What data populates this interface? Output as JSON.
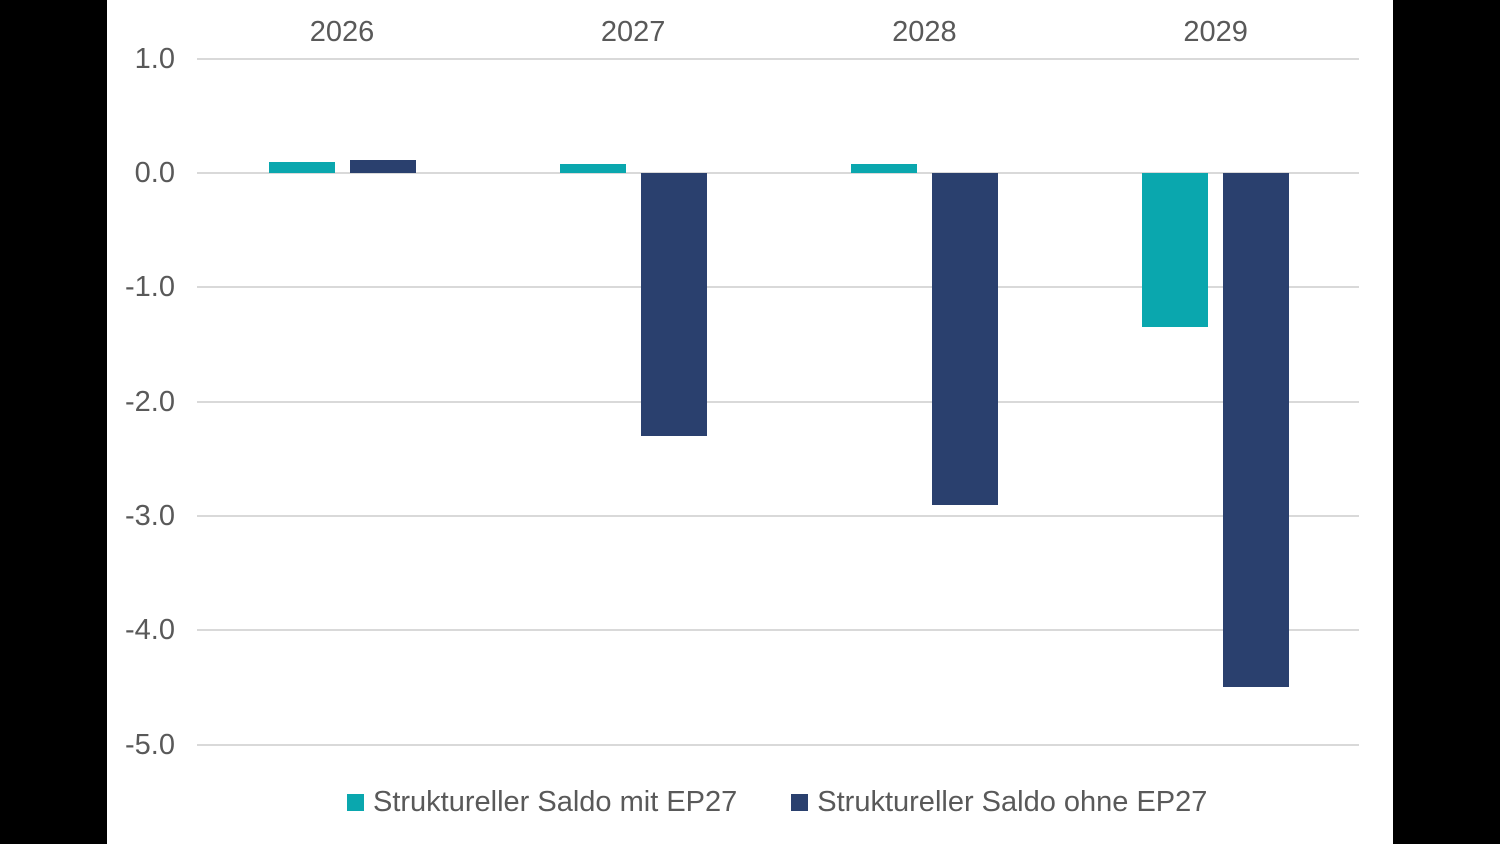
{
  "frame": {
    "background_color": "#000000",
    "canvas_color": "#ffffff",
    "gridline_color": "#D9D9D9",
    "text_color": "#595959"
  },
  "chart_data": {
    "type": "bar",
    "title": "",
    "xlabel": "",
    "ylabel": "",
    "categories": [
      "2026",
      "2027",
      "2028",
      "2029"
    ],
    "series": [
      {
        "name": "Struktureller Saldo mit EP27",
        "color": "#0AA7AE",
        "values": [
          0.1,
          0.08,
          0.08,
          -1.35
        ]
      },
      {
        "name": "Struktureller Saldo ohne EP27",
        "color": "#2A406E",
        "values": [
          0.11,
          -2.3,
          -2.9,
          -4.5
        ]
      }
    ],
    "y_ticks": [
      1.0,
      0.0,
      -1.0,
      -2.0,
      -3.0,
      -4.0,
      -5.0
    ],
    "y_tick_labels": [
      "1.0",
      "0.0",
      "-1.0",
      "-2.0",
      "-3.0",
      "-4.0",
      "-5.0"
    ],
    "ylim": [
      -5.0,
      1.0
    ],
    "grid": true,
    "category_axis_position": "top",
    "legend_position": "bottom"
  }
}
